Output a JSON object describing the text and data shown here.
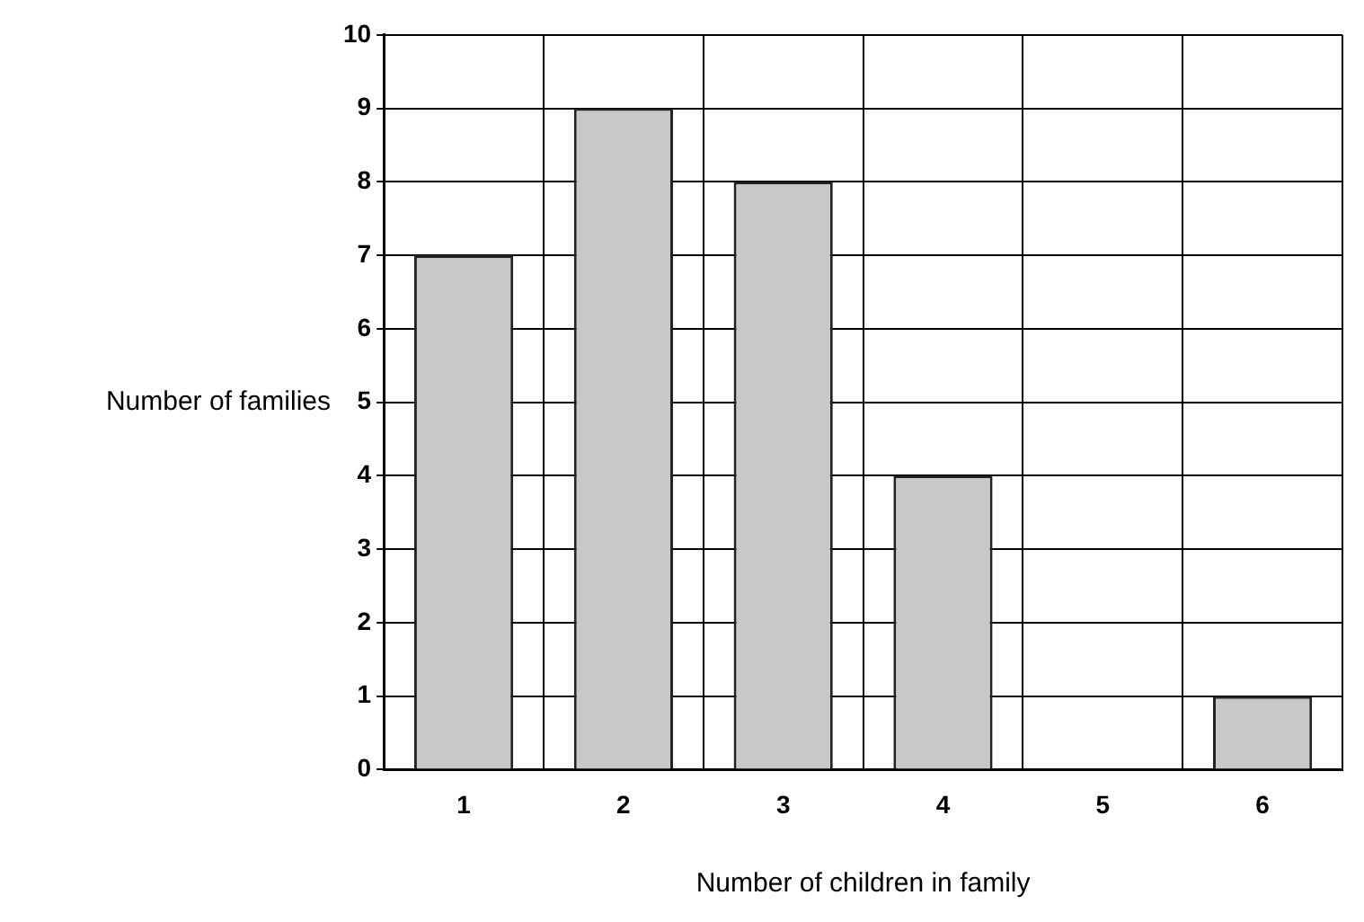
{
  "chart_data": {
    "type": "bar",
    "xlabel": "Number of children in family",
    "ylabel": "Number of families",
    "categories": [
      "1",
      "2",
      "3",
      "4",
      "5",
      "6"
    ],
    "values": [
      7,
      9,
      8,
      4,
      0,
      1
    ],
    "color": "#c8c8c8",
    "ylim": [
      0,
      10
    ],
    "yticks": [
      0,
      1,
      2,
      3,
      4,
      5,
      6,
      7,
      8,
      9,
      10
    ],
    "grid": true
  }
}
